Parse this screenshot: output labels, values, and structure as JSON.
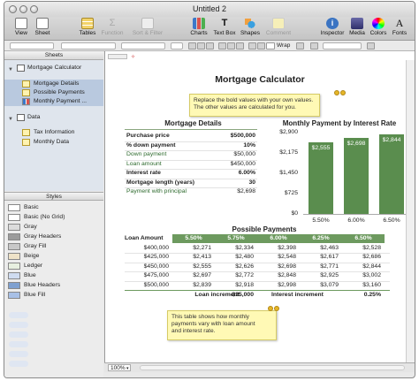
{
  "window": {
    "title": "Untitled 2"
  },
  "toolbar": {
    "view": "View",
    "sheet": "Sheet",
    "tables": "Tables",
    "function": "Function",
    "sort_filter": "Sort & Filter",
    "charts": "Charts",
    "text_box": "Text Box",
    "shapes": "Shapes",
    "comment": "Comment",
    "inspector": "Inspector",
    "media": "Media",
    "colors": "Colors",
    "fonts": "Fonts"
  },
  "formatbar": {
    "wrap": "Wrap"
  },
  "sidebar": {
    "sheets_header": "Sheets",
    "sheets": [
      {
        "name": "Mortgage Calculator",
        "tables": [
          "Mortgage Details",
          "Possible Payments",
          "Monthly Payment ..."
        ]
      },
      {
        "name": "Data",
        "tables": [
          "Tax Information",
          "Monthly Data"
        ]
      }
    ],
    "styles_header": "Styles",
    "styles": [
      "Basic",
      "Basic (No Grid)",
      "Gray",
      "Gray Headers",
      "Gray Fill",
      "Beige",
      "Ledger",
      "Blue",
      "Blue Headers",
      "Blue Fill"
    ],
    "style_colors": [
      "#ffffff",
      "#ffffff",
      "#dcdcdc",
      "#9b9b9b",
      "#c8c8c8",
      "#efe3c8",
      "#e8f0e0",
      "#cfdcf0",
      "#7ea0d0",
      "#a8c0e6"
    ]
  },
  "sheet": {
    "title": "Mortgage Calculator",
    "note_top": [
      "Replace the bold values with your own values.",
      "The other values are calculated for you."
    ],
    "details": {
      "title": "Mortgage Details",
      "rows": [
        {
          "label": "Purchase price",
          "value": "$500,000",
          "bold": true
        },
        {
          "label": "% down payment",
          "value": "10%",
          "bold": true
        },
        {
          "label": "Down payment",
          "value": "$50,000",
          "bold": false
        },
        {
          "label": "Loan amount",
          "value": "$450,000",
          "bold": false
        },
        {
          "label": "Interest rate",
          "value": "6.00%",
          "bold": true
        },
        {
          "label": "Mortgage length (years)",
          "value": "30",
          "bold": true
        },
        {
          "label": "Payment with principal",
          "value": "$2,698",
          "bold": false
        }
      ]
    },
    "chart_data": {
      "type": "bar",
      "title": "Monthly Payment by Interest Rate",
      "categories": [
        "5.50%",
        "6.00%",
        "6.50%"
      ],
      "values": [
        2555,
        2698,
        2844
      ],
      "data_labels": [
        "$2,555",
        "$2,698",
        "$2,844"
      ],
      "y_ticks": [
        "$2,900",
        "$2,175",
        "$1,450",
        "$725",
        "$0"
      ],
      "ylim": [
        0,
        2900
      ],
      "bar_color": "#5a8d4e"
    },
    "payments": {
      "title": "Possible Payments",
      "corner": "Loan Amount",
      "rates": [
        "5.50%",
        "5.75%",
        "6.00%",
        "6.25%",
        "6.50%"
      ],
      "rows": [
        {
          "amount": "$400,000",
          "values": [
            "$2,271",
            "$2,334",
            "$2,398",
            "$2,463",
            "$2,528"
          ]
        },
        {
          "amount": "$425,000",
          "values": [
            "$2,413",
            "$2,480",
            "$2,548",
            "$2,617",
            "$2,686"
          ]
        },
        {
          "amount": "$450,000",
          "values": [
            "$2,555",
            "$2,626",
            "$2,698",
            "$2,771",
            "$2,844"
          ]
        },
        {
          "amount": "$475,000",
          "values": [
            "$2,697",
            "$2,772",
            "$2,848",
            "$2,925",
            "$3,002"
          ]
        },
        {
          "amount": "$500,000",
          "values": [
            "$2,839",
            "$2,918",
            "$2,998",
            "$3,079",
            "$3,160"
          ]
        }
      ],
      "footer": {
        "loan_increment_label": "Loan increment",
        "loan_increment": "$25,000",
        "interest_increment_label": "Interest increment",
        "interest_increment": "0.25%"
      }
    },
    "note_bottom": [
      "This table shows how monthly",
      "payments vary with loan amount",
      "and interest rate."
    ]
  },
  "statusbar": {
    "zoom": "100%"
  }
}
